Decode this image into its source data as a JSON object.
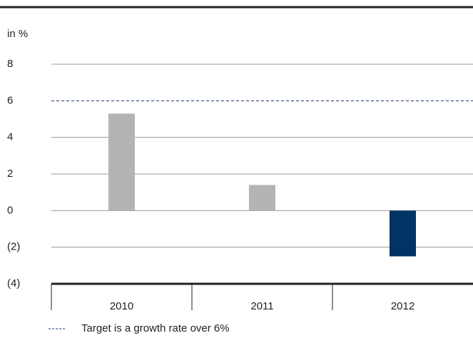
{
  "chart_data": {
    "type": "bar",
    "y_label": "in %",
    "categories": [
      "2010",
      "2011",
      "2012"
    ],
    "values": [
      5.3,
      1.4,
      -2.5
    ],
    "colors": [
      "#b3b4b6",
      "#b3b4b6",
      "#003366"
    ],
    "ylim": [
      -4,
      8
    ],
    "yticks": [
      {
        "value": -4,
        "label": "(4)"
      },
      {
        "value": -2,
        "label": "(2)"
      },
      0,
      2,
      4,
      6,
      8
    ],
    "grid": true,
    "target": 6,
    "target_label": "Target is a growth rate over 6%"
  }
}
